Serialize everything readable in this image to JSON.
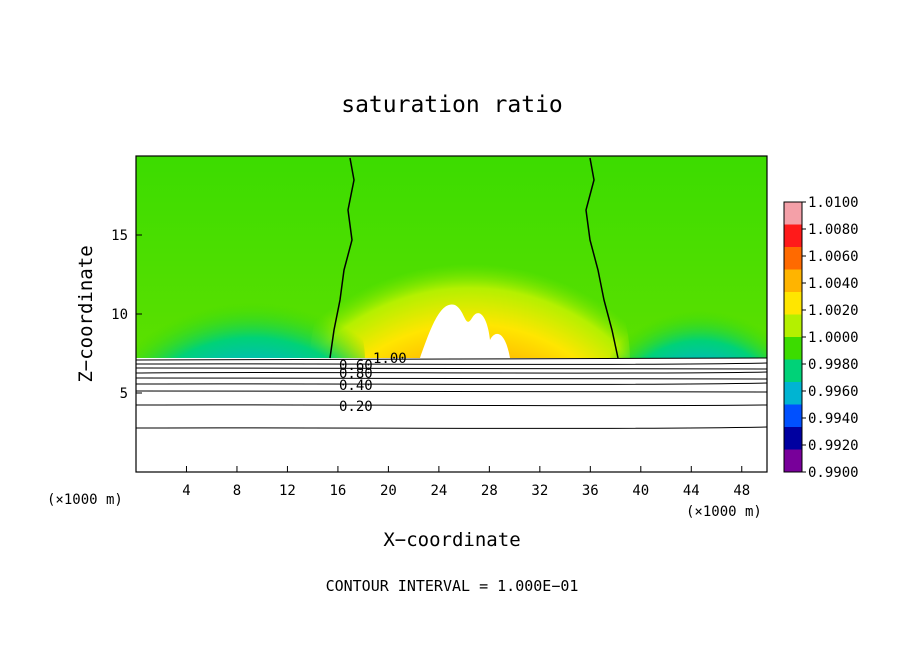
{
  "chart_data": {
    "type": "heatmap",
    "title": "saturation ratio",
    "xlabel": "X−coordinate",
    "ylabel": "Z−coordinate",
    "x_unit": "(×1000 m)",
    "y_unit": "(×1000 m)",
    "xlim": [
      0,
      50
    ],
    "ylim": [
      0,
      20
    ],
    "x_ticks": [
      "4",
      "8",
      "12",
      "16",
      "20",
      "24",
      "28",
      "32",
      "36",
      "40",
      "44",
      "48"
    ],
    "y_ticks": [
      "5",
      "10",
      "15"
    ],
    "colorbar": {
      "labels": [
        "1.0100",
        "1.0080",
        "1.0060",
        "1.0040",
        "1.0020",
        "1.0000",
        "0.9980",
        "0.9960",
        "0.9940",
        "0.9920",
        "0.9900"
      ],
      "range": [
        0.99,
        1.01
      ],
      "colors": [
        "#f4a0a8",
        "#ff1a1a",
        "#ff6a00",
        "#ffb400",
        "#ffe600",
        "#b4f000",
        "#3cdc00",
        "#00d278",
        "#00b4d2",
        "#0050ff",
        "#0000a0",
        "#78009a"
      ]
    },
    "contour_labels": [
      "1.00",
      "0.60",
      "0.80",
      "0.40",
      "0.20"
    ],
    "footer": "CONTOUR INTERVAL = 1.000E−01"
  }
}
